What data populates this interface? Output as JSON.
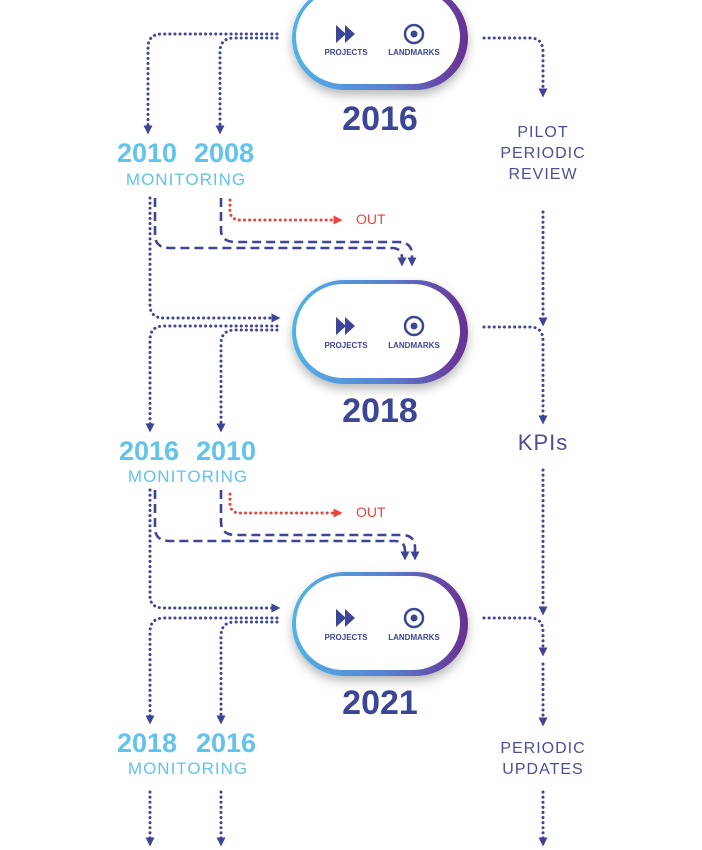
{
  "colors": {
    "navy": "#3d4596",
    "light_blue": "#62c3ec",
    "red": "#e8453c",
    "pill_gradient_start": "#4fb3e8",
    "pill_gradient_end": "#6a2f8f"
  },
  "icons": {
    "projects": "fast-forward-icon",
    "landmarks": "target-icon"
  },
  "stages": [
    {
      "pill": {
        "projects_label": "PROJECTS",
        "landmarks_label": "LANDMARKS"
      },
      "year": "2016",
      "monitoring": {
        "year_a": "2010",
        "year_b": "2008",
        "label": "MONITORING"
      },
      "side": [
        "PILOT",
        "PERIODIC",
        "REVIEW"
      ],
      "out_label": "OUT"
    },
    {
      "pill": {
        "projects_label": "PROJECTS",
        "landmarks_label": "LANDMARKS"
      },
      "year": "2018",
      "monitoring": {
        "year_a": "2016",
        "year_b": "2010",
        "label": "MONITORING"
      },
      "side": [
        "KPIs"
      ],
      "out_label": "OUT"
    },
    {
      "pill": {
        "projects_label": "PROJECTS",
        "landmarks_label": "LANDMARKS"
      },
      "year": "2021",
      "monitoring": {
        "year_a": "2018",
        "year_b": "2016",
        "label": "MONITORING"
      },
      "side": [
        "PERIODIC",
        "UPDATES"
      ]
    }
  ]
}
